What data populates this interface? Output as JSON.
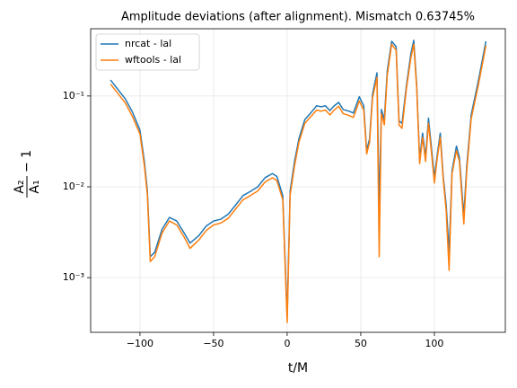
{
  "chart_data": {
    "type": "line",
    "title": "Amplitude deviations (after alignment). Mismatch 0.63745%",
    "xlabel": "t/M",
    "ylabel": {
      "numerator": "A₂",
      "denominator": "A₁",
      "suffix": "− 1"
    },
    "x": [
      -120,
      -110,
      -105,
      -100,
      -97,
      -95,
      -93,
      -90,
      -85,
      -80,
      -75,
      -70,
      -66,
      -60,
      -55,
      -50,
      -45,
      -40,
      -35,
      -30,
      -25,
      -20,
      -15,
      -10,
      -7,
      -3,
      0,
      2,
      5,
      8,
      12,
      16,
      20,
      23,
      26,
      29,
      32,
      35,
      38,
      42,
      45,
      49,
      52,
      54,
      56,
      58,
      61,
      62.5,
      64,
      66,
      68,
      71,
      74,
      76,
      78,
      81,
      84,
      86,
      88,
      90,
      92,
      94,
      96,
      98,
      100,
      102,
      104,
      106,
      108,
      110,
      112,
      115,
      117,
      120,
      122,
      125,
      130,
      135
    ],
    "series": [
      {
        "name": "nrcat - lal",
        "color": "#1f77b4",
        "values": [
          0.15,
          0.093,
          0.066,
          0.042,
          0.019,
          0.0091,
          0.0017,
          0.0019,
          0.0034,
          0.0046,
          0.0042,
          0.0031,
          0.0024,
          0.0029,
          0.0037,
          0.0042,
          0.0044,
          0.005,
          0.0063,
          0.008,
          0.0089,
          0.01,
          0.0126,
          0.014,
          0.013,
          0.008,
          0.00037,
          0.009,
          0.019,
          0.034,
          0.055,
          0.065,
          0.078,
          0.076,
          0.078,
          0.069,
          0.078,
          0.085,
          0.071,
          0.068,
          0.065,
          0.098,
          0.078,
          0.025,
          0.034,
          0.105,
          0.18,
          0.0058,
          0.071,
          0.055,
          0.19,
          0.4,
          0.35,
          0.053,
          0.05,
          0.13,
          0.29,
          0.41,
          0.13,
          0.02,
          0.039,
          0.021,
          0.057,
          0.027,
          0.0126,
          0.023,
          0.039,
          0.013,
          0.0064,
          0.0019,
          0.0151,
          0.028,
          0.021,
          0.0048,
          0.017,
          0.062,
          0.15,
          0.4
        ]
      },
      {
        "name": "wftools - lal",
        "color": "#ff7f0e",
        "values": [
          0.135,
          0.084,
          0.059,
          0.038,
          0.017,
          0.0082,
          0.0015,
          0.0017,
          0.0031,
          0.0042,
          0.0038,
          0.0028,
          0.0021,
          0.0026,
          0.0033,
          0.0038,
          0.004,
          0.0045,
          0.0057,
          0.0072,
          0.008,
          0.009,
          0.0113,
          0.0126,
          0.0117,
          0.0072,
          0.00032,
          0.0081,
          0.017,
          0.031,
          0.05,
          0.059,
          0.07,
          0.068,
          0.07,
          0.062,
          0.07,
          0.077,
          0.064,
          0.061,
          0.058,
          0.088,
          0.07,
          0.023,
          0.031,
          0.095,
          0.16,
          0.0017,
          0.064,
          0.048,
          0.17,
          0.37,
          0.32,
          0.048,
          0.044,
          0.12,
          0.26,
          0.37,
          0.12,
          0.018,
          0.035,
          0.019,
          0.05,
          0.024,
          0.011,
          0.021,
          0.035,
          0.012,
          0.0055,
          0.0012,
          0.014,
          0.025,
          0.019,
          0.0039,
          0.015,
          0.056,
          0.135,
          0.36
        ]
      }
    ],
    "xlim": [
      -133.5,
      148.2
    ],
    "ylim": [
      0.00025,
      0.55
    ],
    "ylog": true,
    "xticks": [
      {
        "value": -100,
        "label": "−100"
      },
      {
        "value": -50,
        "label": "−50"
      },
      0,
      50,
      100
    ],
    "yticks": [
      {
        "value": 0.001,
        "label": "10⁻³"
      },
      {
        "value": 0.01,
        "label": "10⁻²"
      },
      {
        "value": 0.1,
        "label": "10⁻¹"
      }
    ],
    "grid": true,
    "legend": "upper left"
  }
}
